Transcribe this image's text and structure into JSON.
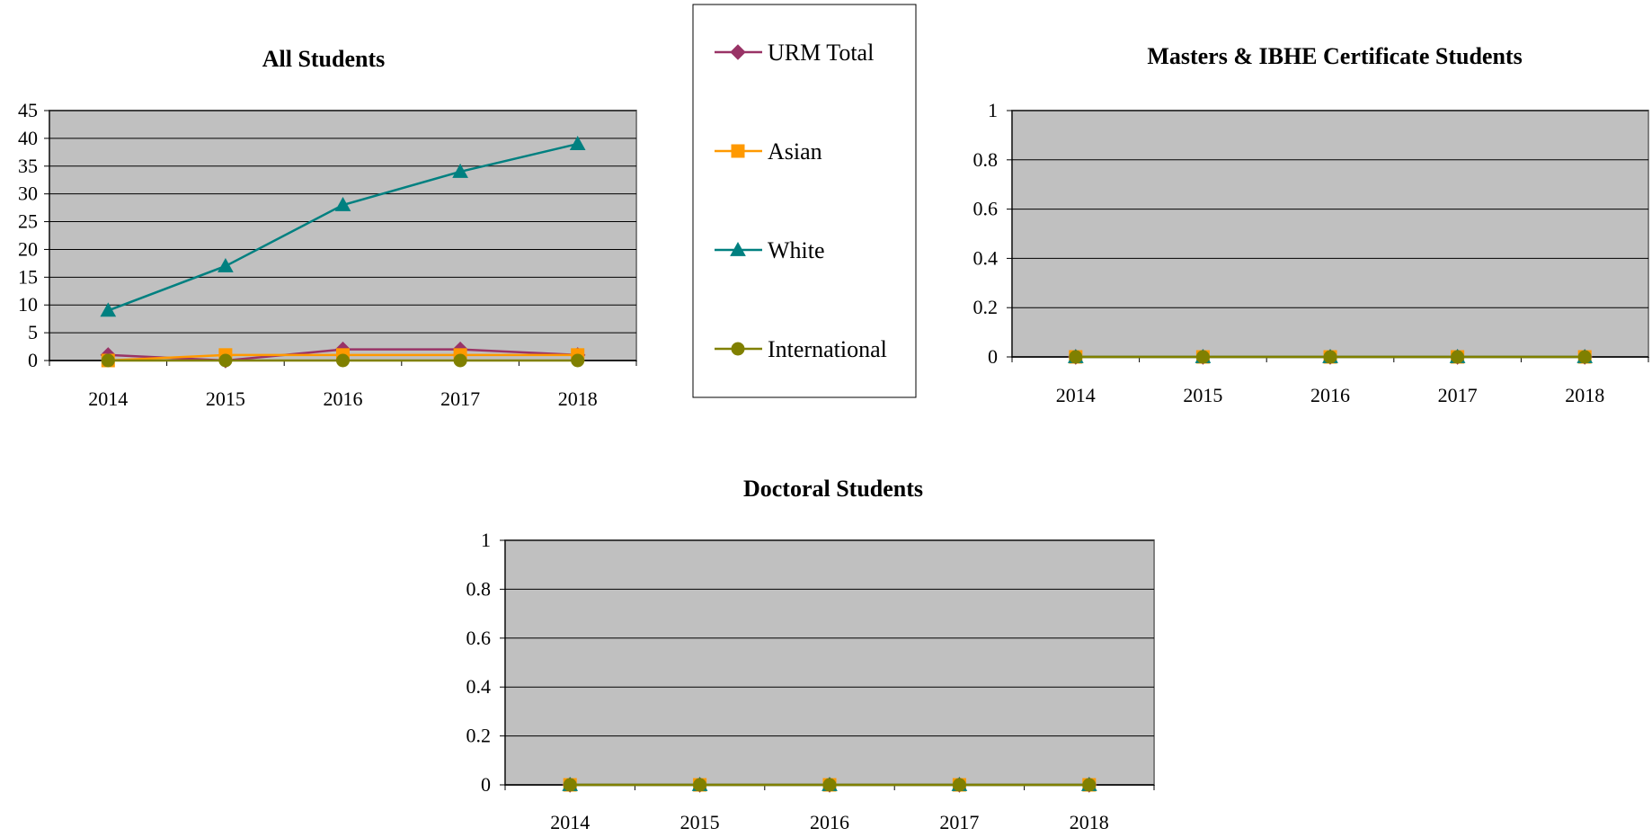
{
  "colors": {
    "plot_bg": "#c0c0c0",
    "gridline": "#000000",
    "urm_total": "#993366",
    "asian": "#ff9900",
    "white": "#008080",
    "international": "#808000"
  },
  "legend": [
    {
      "name": "URM Total",
      "marker": "diamond",
      "color": "#993366"
    },
    {
      "name": "Asian",
      "marker": "square",
      "color": "#ff9900"
    },
    {
      "name": "White",
      "marker": "triangle",
      "color": "#008080"
    },
    {
      "name": "International",
      "marker": "circle",
      "color": "#808000"
    }
  ],
  "chart_data": [
    {
      "type": "line",
      "title": "All Students",
      "categories": [
        "2014",
        "2015",
        "2016",
        "2017",
        "2018"
      ],
      "ylim": [
        0,
        45
      ],
      "yticks": [
        "0",
        "5",
        "10",
        "15",
        "20",
        "25",
        "30",
        "35",
        "40",
        "45"
      ],
      "grid": true,
      "series": [
        {
          "name": "URM Total",
          "values": [
            1,
            0,
            2,
            2,
            1
          ]
        },
        {
          "name": "Asian",
          "values": [
            0,
            1,
            1,
            1,
            1
          ]
        },
        {
          "name": "White",
          "values": [
            9,
            17,
            28,
            34,
            39
          ]
        },
        {
          "name": "International",
          "values": [
            0,
            0,
            0,
            0,
            0
          ]
        }
      ]
    },
    {
      "type": "line",
      "title": "Masters & IBHE Certificate Students",
      "categories": [
        "2014",
        "2015",
        "2016",
        "2017",
        "2018"
      ],
      "ylim": [
        0,
        1
      ],
      "yticks": [
        "0",
        "0.2",
        "0.4",
        "0.6",
        "0.8",
        "1"
      ],
      "grid": true,
      "series": [
        {
          "name": "URM Total",
          "values": [
            0,
            0,
            0,
            0,
            0
          ]
        },
        {
          "name": "Asian",
          "values": [
            0,
            0,
            0,
            0,
            0
          ]
        },
        {
          "name": "White",
          "values": [
            0,
            0,
            0,
            0,
            0
          ]
        },
        {
          "name": "International",
          "values": [
            0,
            0,
            0,
            0,
            0
          ]
        }
      ]
    },
    {
      "type": "line",
      "title": "Doctoral Students",
      "categories": [
        "2014",
        "2015",
        "2016",
        "2017",
        "2018"
      ],
      "ylim": [
        0,
        1
      ],
      "yticks": [
        "0",
        "0.2",
        "0.4",
        "0.6",
        "0.8",
        "1"
      ],
      "grid": true,
      "series": [
        {
          "name": "URM Total",
          "values": [
            0,
            0,
            0,
            0,
            0
          ]
        },
        {
          "name": "Asian",
          "values": [
            0,
            0,
            0,
            0,
            0
          ]
        },
        {
          "name": "White",
          "values": [
            0,
            0,
            0,
            0,
            0
          ]
        },
        {
          "name": "International",
          "values": [
            0,
            0,
            0,
            0,
            0
          ]
        }
      ]
    }
  ]
}
